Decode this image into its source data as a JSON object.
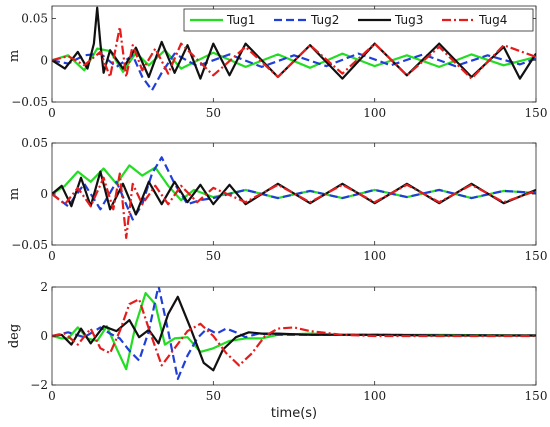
{
  "chart_data": [
    {
      "type": "line",
      "ylabel": "m",
      "xlim": [
        0,
        150
      ],
      "ylim": [
        -0.05,
        0.065
      ],
      "yticks": [
        -0.05,
        0,
        0.05
      ],
      "ytick_labels": [
        "−0.05",
        "0",
        "0.05"
      ],
      "xticks": [
        0,
        50,
        100,
        150
      ],
      "xtick_labels": [
        "0",
        "50",
        "100",
        "150"
      ],
      "legend": {
        "placement": "top-right",
        "columns": 4
      },
      "series": [
        {
          "name": "Tug1",
          "color": "#22dd22",
          "dash": "solid",
          "width": 2.2,
          "x": [
            0,
            5,
            10,
            14,
            18,
            22,
            26,
            30,
            35,
            40,
            50,
            60,
            70,
            80,
            90,
            100,
            110,
            120,
            130,
            140,
            150
          ],
          "y": [
            0,
            0.006,
            -0.012,
            0.014,
            0.011,
            -0.014,
            0.009,
            -0.006,
            0.012,
            -0.01,
            0.009,
            -0.008,
            0.007,
            -0.009,
            0.008,
            -0.007,
            0.006,
            -0.008,
            0.007,
            -0.006,
            0.004
          ]
        },
        {
          "name": "Tug2",
          "color": "#1f3fd8",
          "dash": "dashed",
          "width": 2.2,
          "x": [
            0,
            5,
            10,
            15,
            20,
            25,
            28,
            31,
            34,
            38,
            45,
            55,
            65,
            75,
            85,
            95,
            105,
            115,
            125,
            135,
            145,
            150
          ],
          "y": [
            0,
            -0.004,
            0.006,
            0.008,
            -0.008,
            0.006,
            -0.02,
            -0.036,
            -0.015,
            0.008,
            -0.007,
            0.007,
            -0.008,
            0.006,
            -0.007,
            0.008,
            -0.006,
            0.007,
            -0.007,
            0.006,
            -0.005,
            0.002
          ]
        },
        {
          "name": "Tug3",
          "color": "#111111",
          "dash": "solid",
          "width": 2.2,
          "x": [
            0,
            4,
            8,
            11,
            13,
            14,
            15,
            16,
            18,
            22,
            26,
            30,
            34,
            38,
            42,
            46,
            50,
            55,
            60,
            70,
            80,
            90,
            100,
            110,
            120,
            130,
            140,
            145,
            150
          ],
          "y": [
            0,
            -0.01,
            0.01,
            -0.01,
            0.02,
            0.063,
            0.02,
            -0.015,
            0.012,
            -0.01,
            0.015,
            -0.02,
            0.022,
            -0.015,
            0.018,
            -0.022,
            0.02,
            -0.018,
            0.02,
            -0.02,
            0.018,
            -0.022,
            0.02,
            -0.018,
            0.02,
            -0.02,
            0.016,
            -0.022,
            0.008
          ]
        },
        {
          "name": "Tug4",
          "color": "#e51c1c",
          "dash": "dashdot",
          "width": 2.2,
          "x": [
            0,
            5,
            10,
            15,
            18,
            21,
            23,
            25,
            28,
            32,
            36,
            40,
            50,
            60,
            70,
            80,
            90,
            100,
            110,
            120,
            130,
            140,
            150
          ],
          "y": [
            0,
            0.005,
            -0.006,
            0.01,
            -0.02,
            0.04,
            -0.02,
            0.018,
            -0.012,
            0.014,
            -0.016,
            0.02,
            -0.018,
            0.016,
            -0.02,
            0.018,
            -0.016,
            0.02,
            -0.018,
            0.016,
            -0.022,
            0.018,
            0.004
          ]
        }
      ]
    },
    {
      "type": "line",
      "ylabel": "m",
      "xlim": [
        0,
        150
      ],
      "ylim": [
        -0.05,
        0.05
      ],
      "yticks": [
        -0.05,
        0,
        0.05
      ],
      "ytick_labels": [
        "−0.05",
        "0",
        "0.05"
      ],
      "xticks": [
        0,
        50,
        100,
        150
      ],
      "xtick_labels": [
        "0",
        "50",
        "100",
        "150"
      ],
      "series": [
        {
          "name": "Tug1",
          "color": "#22dd22",
          "dash": "solid",
          "width": 2.2,
          "x": [
            0,
            4,
            8,
            12,
            16,
            20,
            24,
            28,
            32,
            36,
            40,
            44,
            50,
            60,
            70,
            80,
            90,
            100,
            110,
            120,
            130,
            140,
            150
          ],
          "y": [
            0,
            0.008,
            0.022,
            0.012,
            0.025,
            0.01,
            0.028,
            0.018,
            0.026,
            0.008,
            -0.006,
            0.004,
            -0.003,
            0.004,
            -0.004,
            0.003,
            -0.004,
            0.004,
            -0.003,
            0.004,
            -0.004,
            0.003,
            0.001
          ]
        },
        {
          "name": "Tug2",
          "color": "#1f3fd8",
          "dash": "dashed",
          "width": 2.2,
          "x": [
            0,
            5,
            10,
            15,
            20,
            25,
            28,
            31,
            34,
            38,
            42,
            46,
            50,
            60,
            70,
            80,
            90,
            100,
            110,
            120,
            130,
            140,
            150
          ],
          "y": [
            0,
            -0.012,
            0.01,
            -0.015,
            0.012,
            -0.025,
            -0.01,
            0.02,
            0.036,
            0.01,
            -0.01,
            -0.006,
            -0.004,
            0.004,
            -0.004,
            0.003,
            -0.004,
            0.004,
            -0.003,
            0.004,
            -0.004,
            0.003,
            0.001
          ]
        },
        {
          "name": "Tug3",
          "color": "#111111",
          "dash": "solid",
          "width": 2.2,
          "x": [
            0,
            3,
            6,
            9,
            12,
            15,
            18,
            22,
            26,
            30,
            34,
            38,
            42,
            46,
            50,
            55,
            60,
            70,
            80,
            90,
            100,
            110,
            120,
            130,
            140,
            150
          ],
          "y": [
            0,
            0.008,
            -0.012,
            0.016,
            -0.012,
            0.022,
            -0.015,
            0.01,
            -0.02,
            0.012,
            -0.01,
            0.012,
            -0.008,
            0.009,
            -0.01,
            0.009,
            -0.01,
            0.01,
            -0.009,
            0.01,
            -0.009,
            0.01,
            -0.009,
            0.01,
            -0.009,
            0.004
          ]
        },
        {
          "name": "Tug4",
          "color": "#e51c1c",
          "dash": "dashdot",
          "width": 2.2,
          "x": [
            0,
            4,
            8,
            12,
            16,
            19,
            21,
            23,
            25,
            28,
            32,
            36,
            40,
            45,
            50,
            60,
            70,
            80,
            90,
            100,
            110,
            120,
            130,
            140,
            150
          ],
          "y": [
            0,
            -0.01,
            0.006,
            -0.012,
            0.016,
            -0.015,
            0.02,
            -0.043,
            0.01,
            -0.01,
            0.008,
            -0.01,
            0.008,
            -0.008,
            0.006,
            -0.008,
            0.009,
            -0.008,
            0.009,
            -0.008,
            0.009,
            -0.008,
            0.009,
            -0.008,
            0.003
          ]
        }
      ]
    },
    {
      "type": "line",
      "ylabel": "deg",
      "xlabel": "time(s)",
      "xlim": [
        0,
        150
      ],
      "ylim": [
        -2,
        2
      ],
      "yticks": [
        -2,
        0,
        2
      ],
      "ytick_labels": [
        "−2",
        "0",
        "2"
      ],
      "xticks": [
        0,
        50,
        100,
        150
      ],
      "xtick_labels": [
        "0",
        "50",
        "100",
        "150"
      ],
      "series": [
        {
          "name": "Tug1",
          "color": "#22dd22",
          "dash": "solid",
          "width": 2.2,
          "x": [
            0,
            3,
            5,
            8,
            11,
            14,
            17,
            20,
            23,
            26,
            29,
            32,
            35,
            38,
            42,
            46,
            50,
            55,
            60,
            65,
            70,
            80,
            90,
            100,
            120,
            150
          ],
          "y": [
            0,
            -0.1,
            -0.1,
            0.35,
            -0.1,
            -0.2,
            0.4,
            -0.5,
            -1.35,
            0.5,
            1.75,
            1.3,
            -0.35,
            -0.1,
            -0.05,
            -0.65,
            -0.5,
            -0.2,
            -0.1,
            -0.1,
            0.05,
            0.1,
            0.05,
            0.05,
            0.05,
            0.02
          ]
        },
        {
          "name": "Tug2",
          "color": "#1f3fd8",
          "dash": "dashed",
          "width": 2.2,
          "x": [
            0,
            5,
            10,
            15,
            18,
            21,
            24,
            27,
            30,
            33,
            36,
            39,
            42,
            45,
            48,
            51,
            54,
            57,
            60,
            64,
            70,
            80,
            90,
            100,
            120,
            150
          ],
          "y": [
            0,
            0.15,
            -0.05,
            0.35,
            0.1,
            -0.1,
            -0.6,
            -1.0,
            0.2,
            2.05,
            0.2,
            -1.75,
            -0.8,
            -0.1,
            0.3,
            0.1,
            0.3,
            0.15,
            -0.05,
            0.1,
            0.05,
            0.05,
            0.05,
            0.05,
            0.03,
            0.02
          ]
        },
        {
          "name": "Tug3",
          "color": "#111111",
          "dash": "solid",
          "width": 2.2,
          "x": [
            0,
            3,
            6,
            9,
            12,
            16,
            20,
            24,
            27,
            30,
            33,
            36,
            39,
            43,
            47,
            50,
            53,
            57,
            61,
            65,
            70,
            80,
            90,
            100,
            120,
            150
          ],
          "y": [
            0,
            0.05,
            -0.35,
            0.3,
            -0.3,
            0.4,
            0.2,
            0.65,
            -0.05,
            0.25,
            -0.3,
            0.9,
            1.6,
            0.3,
            -1.1,
            -1.4,
            -0.55,
            -0.05,
            0.15,
            0.1,
            0.1,
            0.05,
            0.05,
            0.05,
            0.02,
            0.02
          ]
        },
        {
          "name": "Tug4",
          "color": "#e51c1c",
          "dash": "dashdot",
          "width": 2.2,
          "x": [
            0,
            4,
            8,
            12,
            15,
            18,
            21,
            24,
            27,
            30,
            34,
            38,
            42,
            46,
            50,
            54,
            58,
            62,
            66,
            70,
            75,
            80,
            90,
            100,
            120,
            150
          ],
          "y": [
            0,
            0.1,
            -0.35,
            0.3,
            -0.5,
            -0.7,
            0.2,
            1.3,
            1.5,
            0.3,
            -1.2,
            -0.5,
            0.2,
            0.5,
            0.0,
            -0.7,
            -1.2,
            -0.7,
            0.0,
            0.3,
            0.35,
            0.2,
            0.05,
            0.0,
            0.0,
            0.0
          ]
        }
      ]
    }
  ]
}
